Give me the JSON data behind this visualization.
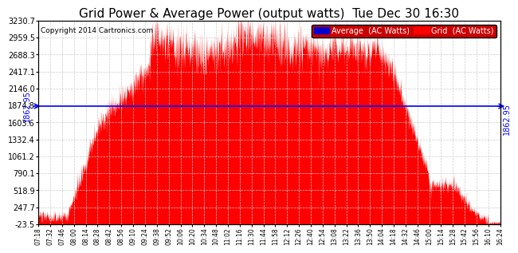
{
  "title": "Grid Power & Average Power (output watts)  Tue Dec 30 16:30",
  "copyright": "Copyright 2014 Cartronics.com",
  "average_value": 1862.95,
  "y_min": -23.5,
  "y_max": 3230.7,
  "y_ticks": [
    3230.7,
    2959.5,
    2688.3,
    2417.1,
    2146.0,
    1874.8,
    1603.6,
    1332.4,
    1061.2,
    790.1,
    518.9,
    247.7,
    -23.5
  ],
  "bg_color": "#ffffff",
  "fill_color": "#ff0000",
  "avg_line_color": "#0000ff",
  "grid_color": "#cccccc",
  "title_fontsize": 11,
  "x_tick_labels": [
    "07:18",
    "07:32",
    "07:46",
    "08:00",
    "08:14",
    "08:28",
    "08:42",
    "08:56",
    "09:10",
    "09:24",
    "09:38",
    "09:52",
    "10:06",
    "10:20",
    "10:34",
    "10:48",
    "11:02",
    "11:16",
    "11:30",
    "11:44",
    "11:58",
    "12:12",
    "12:26",
    "12:40",
    "12:54",
    "13:08",
    "13:22",
    "13:36",
    "13:50",
    "14:04",
    "14:18",
    "14:32",
    "14:46",
    "15:00",
    "15:14",
    "15:28",
    "15:42",
    "15:56",
    "16:10",
    "16:24"
  ],
  "x_start": "07:18",
  "x_end": "16:24"
}
